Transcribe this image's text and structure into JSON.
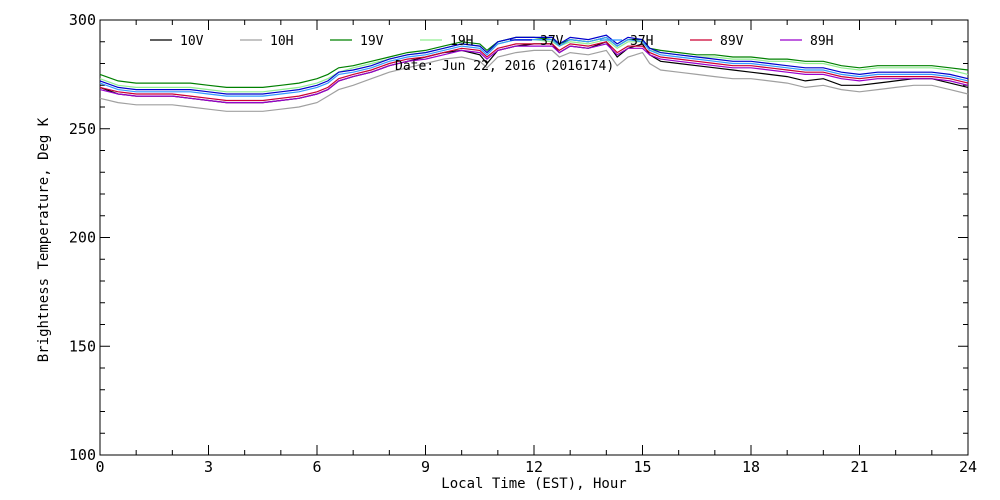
{
  "chart_data": {
    "type": "line",
    "title": "",
    "annotation": "Date: Jun 22, 2016 (2016174)",
    "xlabel": "Local Time (EST), Hour",
    "ylabel": "Brightness Temperature, Deg K",
    "xlim": [
      0,
      24
    ],
    "ylim": [
      100,
      300
    ],
    "xticks": [
      0,
      3,
      6,
      9,
      12,
      15,
      18,
      21,
      24
    ],
    "yticks": [
      100,
      150,
      200,
      250,
      300
    ],
    "grid": false,
    "legend_position": "top",
    "x": [
      0,
      0.5,
      1,
      1.5,
      2,
      2.5,
      3,
      3.5,
      4,
      4.5,
      5,
      5.5,
      6,
      6.3,
      6.6,
      7,
      7.5,
      8,
      8.5,
      9,
      9.5,
      10,
      10.5,
      10.7,
      11,
      11.5,
      12,
      12.5,
      12.7,
      13,
      13.5,
      14,
      14.3,
      14.6,
      15,
      15.2,
      15.5,
      16,
      16.5,
      17,
      17.5,
      18,
      18.5,
      19,
      19.5,
      20,
      20.5,
      21,
      21.5,
      22,
      22.5,
      23,
      23.5,
      24
    ],
    "series": [
      {
        "name": "10V",
        "color": "#000000",
        "values": [
          269,
          266,
          265,
          265,
          265,
          264,
          263,
          262,
          262,
          262,
          263,
          264,
          266,
          268,
          272,
          274,
          276,
          279,
          281,
          283,
          285,
          286,
          284,
          280,
          286,
          288,
          289,
          289,
          285,
          288,
          287,
          290,
          283,
          287,
          289,
          284,
          281,
          280,
          279,
          278,
          277,
          276,
          275,
          274,
          272,
          273,
          270,
          270,
          271,
          272,
          273,
          273,
          271,
          269
        ]
      },
      {
        "name": "10H",
        "color": "#a0a0a0",
        "values": [
          264,
          262,
          261,
          261,
          261,
          260,
          259,
          258,
          258,
          258,
          259,
          260,
          262,
          265,
          268,
          270,
          273,
          276,
          278,
          280,
          282,
          283,
          281,
          278,
          283,
          285,
          286,
          286,
          283,
          285,
          284,
          286,
          279,
          283,
          285,
          280,
          277,
          276,
          275,
          274,
          273,
          273,
          272,
          271,
          269,
          270,
          268,
          267,
          268,
          269,
          270,
          270,
          268,
          266
        ]
      },
      {
        "name": "19V",
        "color": "#008000",
        "values": [
          275,
          272,
          271,
          271,
          271,
          271,
          270,
          269,
          269,
          269,
          270,
          271,
          273,
          275,
          278,
          279,
          281,
          283,
          285,
          286,
          288,
          290,
          289,
          286,
          290,
          292,
          292,
          291,
          289,
          291,
          290,
          292,
          288,
          291,
          291,
          287,
          286,
          285,
          284,
          284,
          283,
          283,
          282,
          282,
          281,
          281,
          279,
          278,
          279,
          279,
          279,
          279,
          278,
          277
        ]
      },
      {
        "name": "19H",
        "color": "#90ee90",
        "values": [
          273,
          270,
          269,
          269,
          269,
          269,
          268,
          267,
          267,
          267,
          268,
          269,
          271,
          273,
          276,
          278,
          280,
          282,
          284,
          285,
          287,
          289,
          288,
          285,
          289,
          291,
          291,
          290,
          288,
          290,
          289,
          291,
          287,
          290,
          290,
          286,
          285,
          284,
          283,
          283,
          282,
          282,
          281,
          281,
          280,
          280,
          278,
          277,
          278,
          278,
          278,
          278,
          277,
          275
        ]
      },
      {
        "name": "37V",
        "color": "#0000cd",
        "values": [
          272,
          269,
          268,
          268,
          268,
          268,
          267,
          266,
          266,
          266,
          267,
          268,
          270,
          272,
          276,
          277,
          279,
          282,
          284,
          285,
          287,
          289,
          288,
          285,
          290,
          292,
          292,
          292,
          289,
          292,
          291,
          293,
          289,
          292,
          291,
          287,
          285,
          284,
          283,
          282,
          281,
          281,
          280,
          279,
          278,
          278,
          276,
          275,
          276,
          276,
          276,
          276,
          275,
          273
        ]
      },
      {
        "name": "37H",
        "color": "#3399ff",
        "values": [
          271,
          268,
          267,
          267,
          267,
          267,
          266,
          265,
          265,
          265,
          266,
          267,
          269,
          271,
          275,
          276,
          278,
          281,
          283,
          284,
          286,
          288,
          287,
          284,
          289,
          291,
          291,
          291,
          288,
          291,
          290,
          292,
          288,
          291,
          290,
          286,
          284,
          283,
          282,
          281,
          280,
          280,
          279,
          278,
          277,
          277,
          275,
          274,
          275,
          275,
          275,
          275,
          274,
          272
        ]
      },
      {
        "name": "89V",
        "color": "#cc0033",
        "values": [
          269,
          267,
          266,
          266,
          266,
          265,
          264,
          263,
          263,
          263,
          264,
          265,
          267,
          269,
          273,
          275,
          277,
          280,
          282,
          283,
          285,
          287,
          286,
          283,
          287,
          289,
          289,
          289,
          286,
          289,
          288,
          290,
          285,
          288,
          288,
          285,
          283,
          282,
          281,
          280,
          279,
          279,
          278,
          277,
          276,
          276,
          274,
          273,
          274,
          274,
          274,
          274,
          273,
          271
        ]
      },
      {
        "name": "89H",
        "color": "#9900cc",
        "values": [
          268,
          266,
          265,
          265,
          265,
          264,
          263,
          262,
          262,
          262,
          263,
          264,
          266,
          268,
          272,
          274,
          276,
          279,
          281,
          282,
          284,
          286,
          285,
          282,
          286,
          288,
          288,
          288,
          285,
          288,
          287,
          289,
          284,
          287,
          287,
          284,
          282,
          281,
          280,
          279,
          278,
          278,
          277,
          276,
          275,
          275,
          273,
          272,
          273,
          273,
          273,
          273,
          272,
          270
        ]
      }
    ]
  }
}
